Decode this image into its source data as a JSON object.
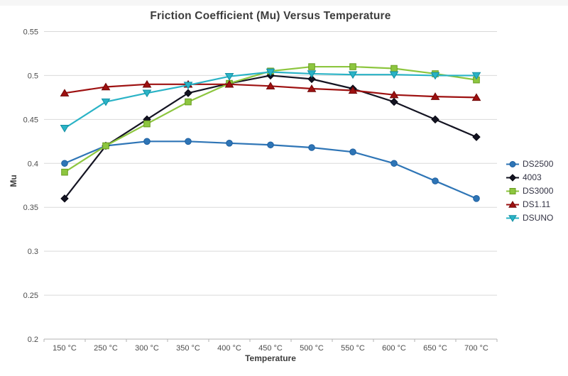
{
  "chart_data": {
    "type": "line",
    "title": "Friction Coefficient (Mu) Versus Temperature",
    "xlabel": "Temperature",
    "ylabel": "Mu",
    "categories": [
      "150 °C",
      "250 °C",
      "300 °C",
      "350 °C",
      "400 °C",
      "450 °C",
      "500 °C",
      "550 °C",
      "600 °C",
      "650 °C",
      "700 °C"
    ],
    "ylim": [
      0.2,
      0.55
    ],
    "yticks": [
      0.55,
      0.5,
      0.45,
      0.4,
      0.35,
      0.3,
      0.25,
      0.2
    ],
    "grid": "horizontal",
    "legend_position": "right",
    "colors": {
      "gridline": "#d9d9d9",
      "axis_line": "#b3b3b3",
      "tick_label": "#4c4c4c",
      "title_text": "#3d3d3d",
      "legend_text": "#333344",
      "top_strip": "#f6f6f6"
    },
    "series": [
      {
        "name": "DS2500",
        "marker": "circle",
        "color": "#2e75b6",
        "edge": "#1d5fa0",
        "values": [
          0.4,
          0.42,
          0.425,
          0.425,
          0.423,
          0.421,
          0.418,
          0.413,
          0.4,
          0.38,
          0.36
        ]
      },
      {
        "name": "4003",
        "marker": "diamond",
        "color": "#141422",
        "edge": "#050510",
        "values": [
          0.36,
          0.42,
          0.45,
          0.48,
          0.491,
          0.5,
          0.496,
          0.485,
          0.47,
          0.45,
          0.43
        ]
      },
      {
        "name": "DS3000",
        "marker": "square",
        "color": "#8dc63f",
        "edge": "#699c21",
        "values": [
          0.39,
          0.42,
          0.445,
          0.47,
          0.491,
          0.505,
          0.51,
          0.51,
          0.508,
          0.502,
          0.495
        ]
      },
      {
        "name": "DS1.11",
        "marker": "triangle-up",
        "color": "#9e1111",
        "edge": "#6f0606",
        "values": [
          0.48,
          0.487,
          0.49,
          0.49,
          0.49,
          0.488,
          0.485,
          0.483,
          0.478,
          0.476,
          0.475
        ]
      },
      {
        "name": "DSUNO",
        "marker": "triangle-down",
        "color": "#2ab3c6",
        "edge": "#128fa3",
        "values": [
          0.44,
          0.47,
          0.48,
          0.489,
          0.499,
          0.504,
          0.502,
          0.501,
          0.501,
          0.5,
          0.5
        ]
      }
    ]
  }
}
